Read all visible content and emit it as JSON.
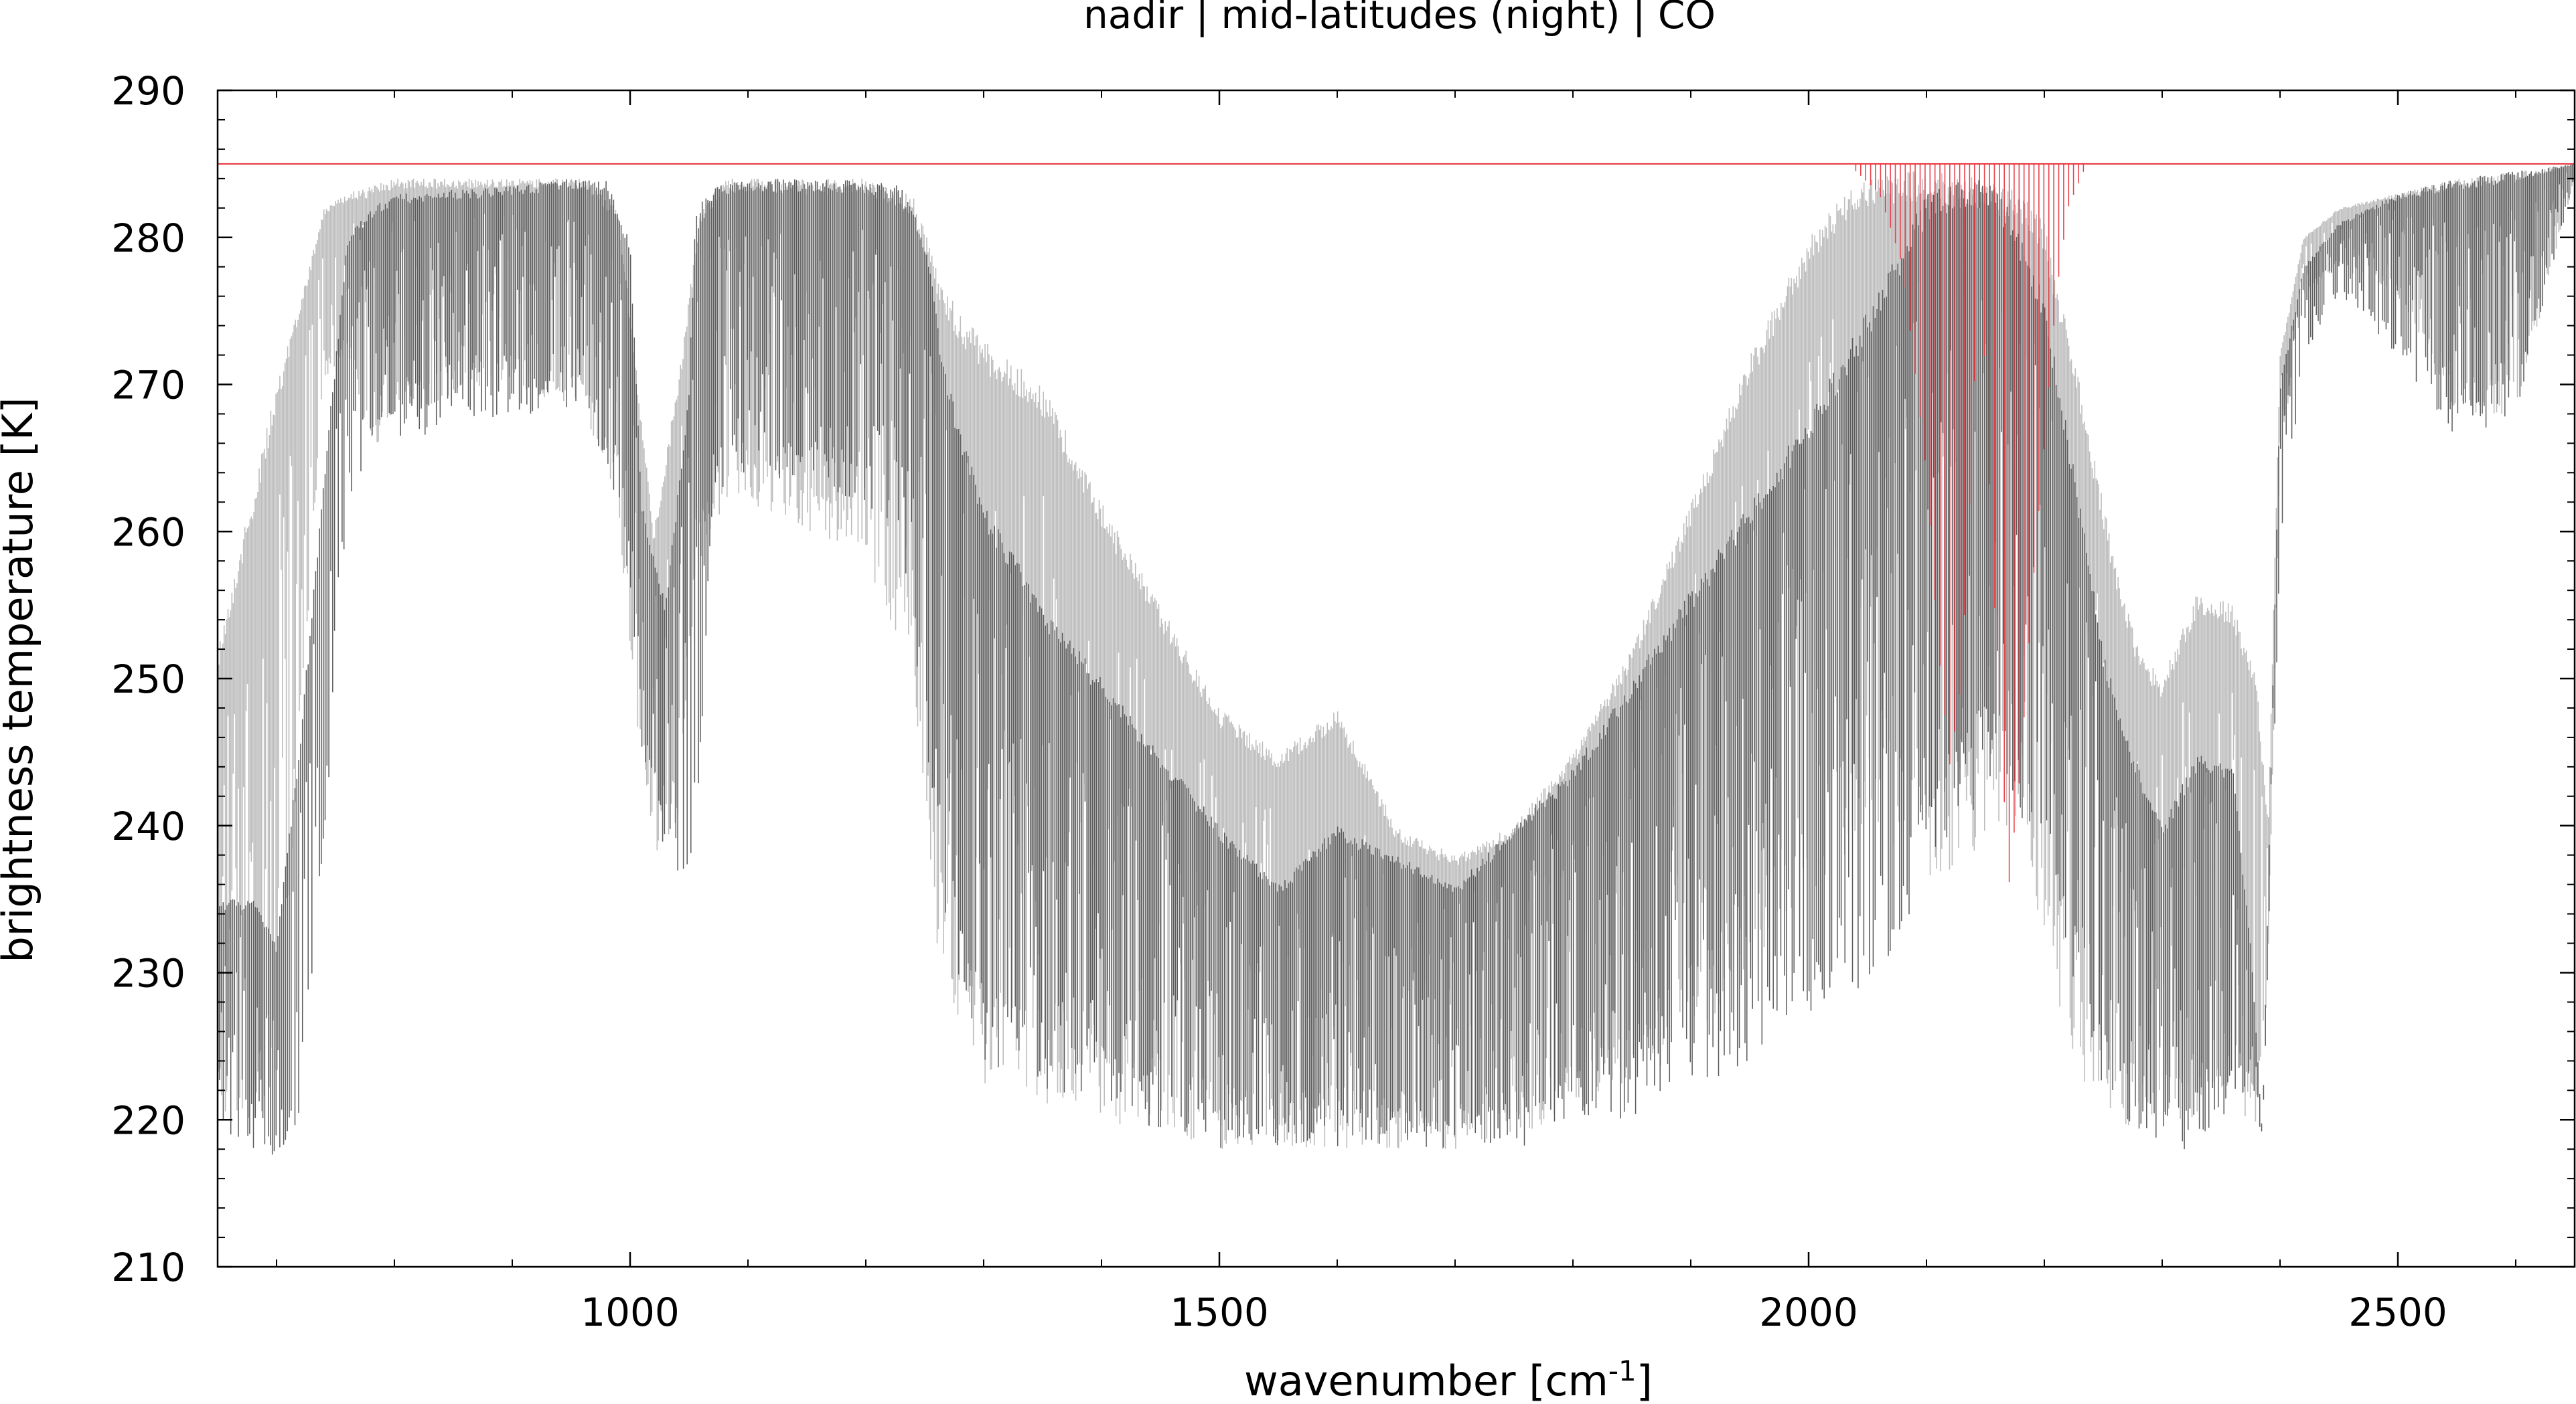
{
  "chart_data": {
    "type": "line",
    "title": "nadir | mid-latitudes (night) | CO",
    "xlabel_main": "wavenumber [cm",
    "xlabel_sup": "-1",
    "xlabel_end": "]",
    "ylabel": "brightness temperature [K]",
    "xlim": [
      650,
      2650
    ],
    "ylim": [
      210,
      290
    ],
    "xticks": [
      1000,
      1500,
      2000,
      2500
    ],
    "xtick_labels": [
      "1000",
      "1500",
      "2000",
      "2500"
    ],
    "yticks": [
      210,
      220,
      230,
      240,
      250,
      260,
      270,
      280,
      290
    ],
    "ytick_labels": [
      "210",
      "220",
      "230",
      "240",
      "250",
      "260",
      "270",
      "280",
      "290"
    ],
    "grid": false,
    "series": [
      {
        "color": "#bdbdbd",
        "envelope": {
          "x": [
            650,
            700,
            720,
            740,
            760,
            780,
            800,
            900,
            960,
            990,
            1000,
            1020,
            1040,
            1060,
            1080,
            1100,
            1200,
            1240,
            1260,
            1280,
            1300,
            1350,
            1400,
            1450,
            1500,
            1550,
            1600,
            1650,
            1700,
            1750,
            1800,
            1850,
            1900,
            1950,
            2000,
            2030,
            2050,
            2080,
            2100,
            2150,
            2180,
            2200,
            2230,
            2260,
            2280,
            2300,
            2330,
            2360,
            2380,
            2390,
            2400,
            2420,
            2450,
            2500,
            2550,
            2600,
            2650
          ],
          "upper": [
            252,
            270,
            276,
            282,
            283,
            283.5,
            284,
            284,
            284,
            282,
            275,
            260,
            270,
            282,
            284,
            284,
            284,
            283,
            278,
            275,
            273,
            270,
            262,
            255,
            248,
            245,
            248,
            240,
            238,
            240,
            245,
            252,
            262,
            272,
            280,
            283,
            284,
            284.5,
            284.5,
            284,
            283,
            281,
            270,
            258,
            252,
            250,
            256,
            255,
            250,
            240,
            272,
            280,
            282,
            283,
            284,
            284.5,
            285
          ],
          "lower": [
            220,
            220,
            245,
            270,
            272,
            265,
            268,
            270,
            268,
            262,
            250,
            238,
            240,
            258,
            262,
            262,
            258,
            250,
            232,
            225,
            222,
            221,
            220,
            219,
            218,
            218,
            218,
            218,
            218,
            219,
            220,
            222,
            225,
            230,
            235,
            238,
            240,
            238,
            236,
            238,
            240,
            232,
            222,
            220,
            219,
            219,
            220,
            222,
            218,
            230,
            265,
            276,
            278,
            276,
            268,
            268,
            284
          ]
        }
      },
      {
        "color": "#5a5a5a",
        "envelope": {
          "x": [
            650,
            680,
            700,
            720,
            740,
            760,
            780,
            800,
            900,
            950,
            980,
            1000,
            1010,
            1030,
            1050,
            1055,
            1070,
            1100,
            1200,
            1230,
            1250,
            1270,
            1300,
            1350,
            1400,
            1450,
            1500,
            1550,
            1600,
            1650,
            1700,
            1750,
            1800,
            1850,
            1900,
            1950,
            2000,
            2050,
            2080,
            2100,
            2130,
            2150,
            2170,
            2200,
            2230,
            2250,
            2270,
            2300,
            2330,
            2360,
            2375,
            2385,
            2400,
            2420,
            2450,
            2500,
            2550,
            2600,
            2650
          ],
          "upper": [
            235,
            235,
            232,
            246,
            264,
            280,
            282,
            283,
            283.5,
            284,
            284,
            280,
            262,
            255,
            270,
            282,
            283.5,
            284,
            284,
            283.5,
            280,
            270,
            262,
            255,
            250,
            245,
            240,
            236,
            240,
            238,
            236,
            240,
            244,
            250,
            256,
            262,
            268,
            275,
            280,
            283,
            284,
            284,
            282,
            276,
            262,
            252,
            246,
            240,
            245,
            244,
            232,
            219,
            270,
            278,
            281,
            283,
            284,
            284.5,
            285
          ],
          "lower": [
            218,
            218,
            217.5,
            220,
            238,
            262,
            265,
            266,
            268,
            268,
            265,
            256,
            245,
            238,
            234,
            236,
            262,
            264,
            262,
            258,
            245,
            232,
            224,
            222,
            221,
            219,
            218,
            218,
            218,
            218,
            218,
            218,
            219,
            220,
            222,
            224,
            226,
            228,
            232,
            236,
            240,
            242,
            242,
            236,
            228,
            222,
            220,
            218,
            218,
            220,
            223,
            218,
            258,
            272,
            276,
            272,
            266,
            268,
            284
          ]
        }
      },
      {
        "color": "#e8303a",
        "baseline": 285,
        "x_range": [
          650,
          2650
        ],
        "band": {
          "x": [
            2040,
            2060,
            2080,
            2100,
            2110,
            2120,
            2130,
            2140,
            2145,
            2150,
            2160,
            2170,
            2180,
            2190,
            2200,
            2210,
            2220,
            2235
          ],
          "depth": [
            284.5,
            283,
            278,
            264,
            252,
            244,
            250,
            268,
            282,
            270,
            250,
            236,
            244,
            256,
            266,
            276,
            282,
            284.8
          ]
        }
      }
    ]
  }
}
